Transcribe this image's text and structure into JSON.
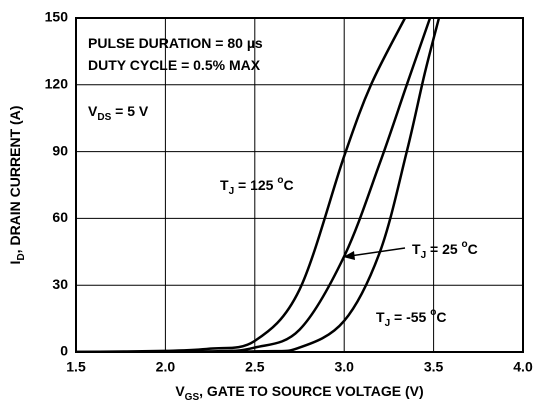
{
  "chart_data": {
    "type": "line",
    "xlabel": [
      "V",
      "GS",
      ", GATE TO SOURCE VOLTAGE (V)"
    ],
    "ylabel": [
      "I",
      "D",
      ", DRAIN CURRENT (A)"
    ],
    "annotations": [
      [
        "PULSE DURATION = 80 µs"
      ],
      [
        "DUTY CYCLE = 0.5% MAX"
      ],
      [
        "V",
        "DS",
        " = 5 V"
      ],
      [
        "T",
        "J",
        " = 125 ",
        "o",
        "C"
      ],
      [
        "T",
        "J",
        " = 25 ",
        "o",
        "C"
      ],
      [
        "T",
        "J",
        " = -55 ",
        "o",
        "C"
      ]
    ],
    "series": [
      {
        "color": "#000000",
        "x": [
          1.5,
          2.0,
          2.25,
          2.5,
          2.75,
          3.0,
          3.15,
          3.34
        ],
        "values": [
          0,
          0.5,
          1.5,
          5,
          28,
          88,
          120,
          150
        ]
      },
      {
        "color": "#000000",
        "x": [
          1.5,
          2.25,
          2.5,
          2.75,
          3.0,
          3.2,
          3.35,
          3.48
        ],
        "values": [
          0,
          0.3,
          2,
          10,
          43,
          85,
          120,
          150
        ]
      },
      {
        "color": "#000000",
        "x": [
          1.5,
          2.5,
          2.75,
          3.0,
          3.2,
          3.35,
          3.45,
          3.53
        ],
        "values": [
          0,
          0.3,
          2,
          14,
          45,
          90,
          125,
          150
        ]
      }
    ],
    "xlim": [
      1.5,
      4.0
    ],
    "ylim": [
      0,
      150
    ],
    "xticks": [
      1.5,
      {
        "value": 2.0,
        "label": "2.0"
      },
      2.5,
      {
        "value": 3.0,
        "label": "3.0"
      },
      3.5,
      {
        "value": 4.0,
        "label": "4.0"
      }
    ],
    "yticks": [
      0,
      30,
      60,
      90,
      120,
      150
    ],
    "grid": true
  }
}
